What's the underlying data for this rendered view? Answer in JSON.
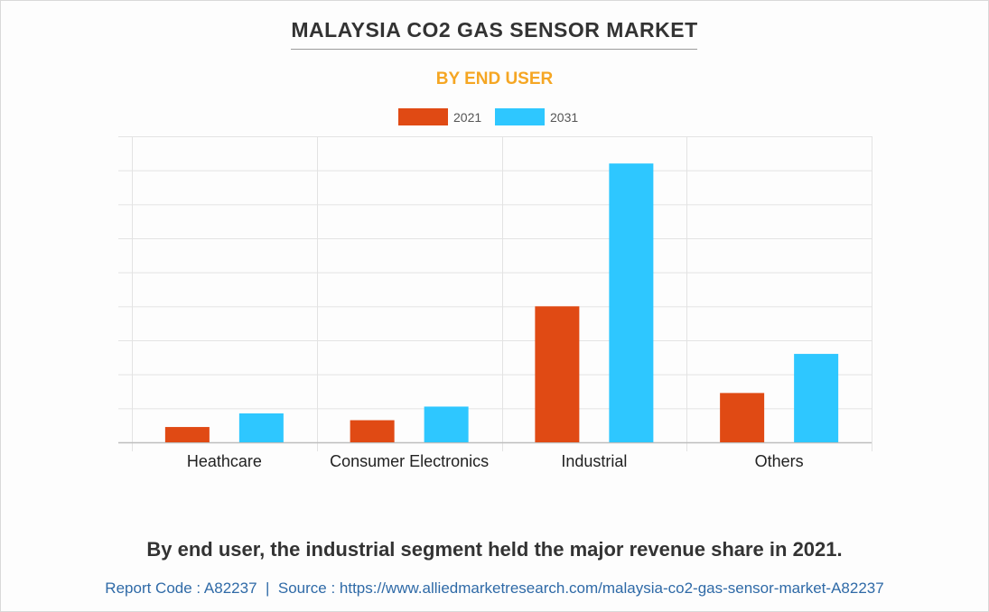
{
  "title": "MALAYSIA CO2 GAS SENSOR MARKET",
  "subtitle": "BY END USER",
  "caption": "By end user, the industrial segment held the major revenue share in 2021.",
  "footer": {
    "report_code": "Report Code : A82237",
    "separator": "|",
    "source": "Source : https://www.alliedmarketresearch.com/malaysia-co2-gas-sensor-market-A82237"
  },
  "colors": {
    "series_2021": "#e04a14",
    "series_2031": "#2ec7ff",
    "title": "#333333",
    "subtitle": "#f5a623",
    "footer": "#2f6aa7"
  },
  "chart_data": {
    "type": "bar",
    "title": "MALAYSIA CO2 GAS SENSOR MARKET",
    "subtitle": "BY END USER",
    "categories": [
      "Heathcare",
      "Consumer Electronics",
      "Industrial",
      "Others"
    ],
    "series": [
      {
        "name": "2021",
        "values": [
          0.45,
          0.65,
          4.0,
          1.45
        ]
      },
      {
        "name": "2031",
        "values": [
          0.85,
          1.05,
          8.2,
          2.6
        ]
      }
    ],
    "ylim": [
      0,
      9
    ],
    "y_gridlines": 9,
    "y_tick_labels_shown": false,
    "grid": true,
    "legend_position": "top-center"
  }
}
